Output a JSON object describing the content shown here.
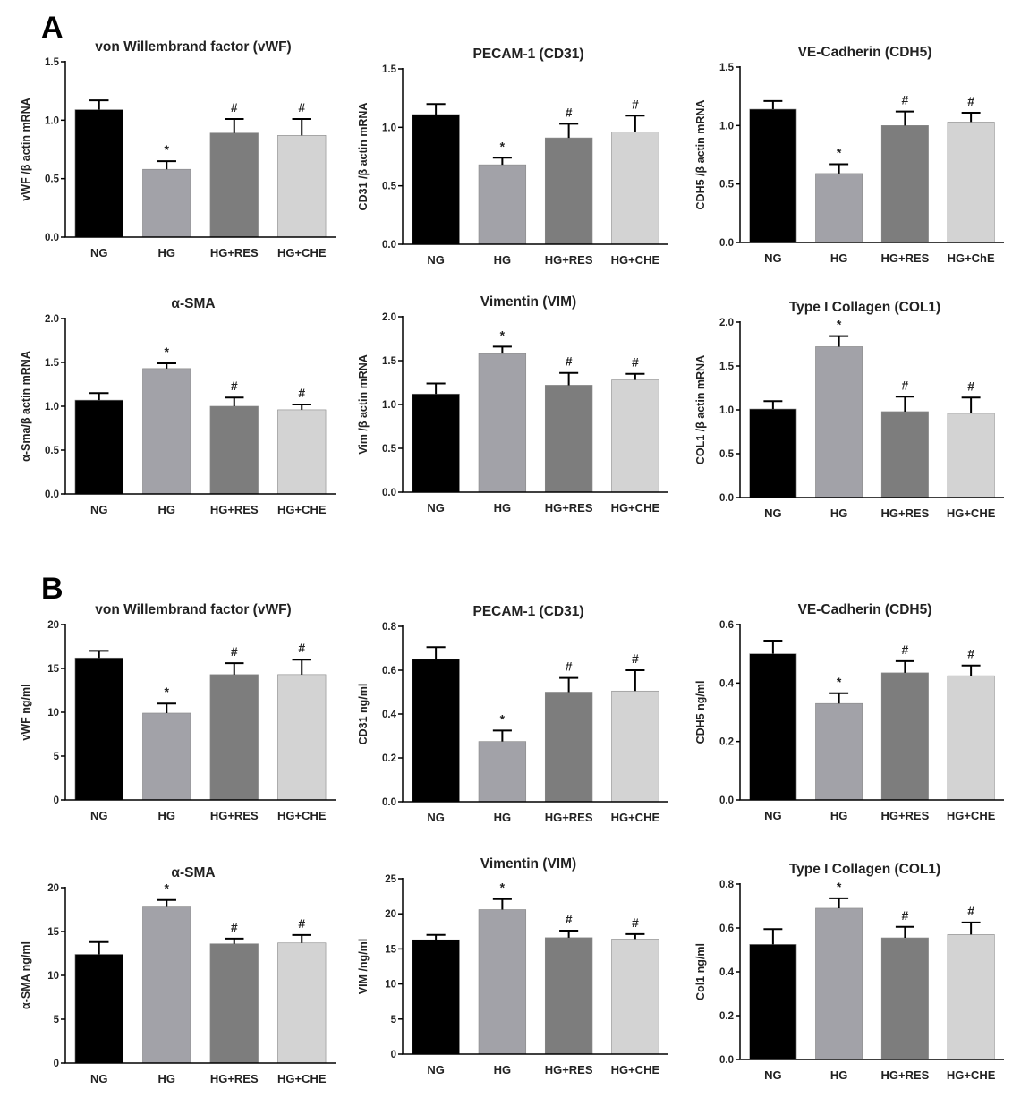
{
  "panels": [
    {
      "letter": "A"
    },
    {
      "letter": "B"
    }
  ],
  "groups": [
    "NG",
    "HG",
    "HG+RES",
    "HG+CHE"
  ],
  "colors": [
    "#000000",
    "#a2a2a8",
    "#7d7d7d",
    "#d3d3d3"
  ],
  "chart_data": [
    {
      "type": "bar",
      "panel": "A",
      "title": "von Willembrand factor (vWF)",
      "ylabel": "vWF /β actin mRNA",
      "categories": [
        "NG",
        "HG",
        "HG+RES",
        "HG+CHE"
      ],
      "values": [
        1.09,
        0.58,
        0.89,
        0.87
      ],
      "errors": [
        0.08,
        0.07,
        0.12,
        0.14
      ],
      "significance": [
        "",
        "*",
        "#",
        "#"
      ],
      "ylim": [
        0,
        1.5
      ],
      "yticks": [
        "0.0",
        "0.5",
        "1.0",
        "1.5"
      ]
    },
    {
      "type": "bar",
      "panel": "A",
      "title": "PECAM-1 (CD31)",
      "ylabel": "CD31 /β actin mRNA",
      "categories": [
        "NG",
        "HG",
        "HG+RES",
        "HG+CHE"
      ],
      "values": [
        1.11,
        0.68,
        0.91,
        0.96
      ],
      "errors": [
        0.09,
        0.06,
        0.12,
        0.14
      ],
      "significance": [
        "",
        "*",
        "#",
        "#"
      ],
      "ylim": [
        0,
        1.5
      ],
      "yticks": [
        "0.0",
        "0.5",
        "1.0",
        "1.5"
      ]
    },
    {
      "type": "bar",
      "panel": "A",
      "title": "VE-Cadherin (CDH5)",
      "ylabel": "CDH5 /β actin mRNA",
      "categories": [
        "NG",
        "HG",
        "HG+RES",
        "HG+ChE"
      ],
      "values": [
        1.14,
        0.59,
        1.0,
        1.03
      ],
      "errors": [
        0.07,
        0.08,
        0.12,
        0.08
      ],
      "significance": [
        "",
        "*",
        "#",
        "#"
      ],
      "ylim": [
        0,
        1.5
      ],
      "yticks": [
        "0.0",
        "0.5",
        "1.0",
        "1.5"
      ]
    },
    {
      "type": "bar",
      "panel": "A",
      "title": "α-SMA",
      "ylabel": "α-Sma/β actin mRNA",
      "categories": [
        "NG",
        "HG",
        "HG+RES",
        "HG+CHE"
      ],
      "values": [
        1.07,
        1.43,
        1.0,
        0.96
      ],
      "errors": [
        0.08,
        0.06,
        0.1,
        0.06
      ],
      "significance": [
        "",
        "*",
        "#",
        "#"
      ],
      "ylim": [
        0,
        2.0
      ],
      "yticks": [
        "0.0",
        "0.5",
        "1.0",
        "1.5",
        "2.0"
      ]
    },
    {
      "type": "bar",
      "panel": "A",
      "title": "Vimentin (VIM)",
      "ylabel": "Vim /β actin mRNA",
      "categories": [
        "NG",
        "HG",
        "HG+RES",
        "HG+CHE"
      ],
      "values": [
        1.12,
        1.58,
        1.22,
        1.28
      ],
      "errors": [
        0.12,
        0.08,
        0.14,
        0.07
      ],
      "significance": [
        "",
        "*",
        "#",
        "#"
      ],
      "ylim": [
        0,
        2.0
      ],
      "yticks": [
        "0.0",
        "0.5",
        "1.0",
        "1.5",
        "2.0"
      ]
    },
    {
      "type": "bar",
      "panel": "A",
      "title": "Type  I Collagen (COL1)",
      "ylabel": "COL1 /β actin mRNA",
      "categories": [
        "NG",
        "HG",
        "HG+RES",
        "HG+CHE"
      ],
      "values": [
        1.01,
        1.72,
        0.98,
        0.96
      ],
      "errors": [
        0.09,
        0.12,
        0.17,
        0.18
      ],
      "significance": [
        "",
        "*",
        "#",
        "#"
      ],
      "ylim": [
        0,
        2.0
      ],
      "yticks": [
        "0.0",
        "0.5",
        "1.0",
        "1.5",
        "2.0"
      ]
    },
    {
      "type": "bar",
      "panel": "B",
      "title": "von Willembrand factor (vWF)",
      "ylabel": "vWF ng/ml",
      "categories": [
        "NG",
        "HG",
        "HG+RES",
        "HG+CHE"
      ],
      "values": [
        16.2,
        9.9,
        14.3,
        14.3
      ],
      "errors": [
        0.8,
        1.1,
        1.3,
        1.7
      ],
      "significance": [
        "",
        "*",
        "#",
        "#"
      ],
      "ylim": [
        0,
        20
      ],
      "yticks": [
        "0",
        "5",
        "10",
        "15",
        "20"
      ]
    },
    {
      "type": "bar",
      "panel": "B",
      "title": "PECAM-1 (CD31)",
      "ylabel": "CD31 ng/ml",
      "categories": [
        "NG",
        "HG",
        "HG+RES",
        "HG+CHE"
      ],
      "values": [
        0.65,
        0.275,
        0.5,
        0.505
      ],
      "errors": [
        0.055,
        0.05,
        0.065,
        0.095
      ],
      "significance": [
        "",
        "*",
        "#",
        "#"
      ],
      "ylim": [
        0,
        0.8
      ],
      "yticks": [
        "0.0",
        "0.2",
        "0.4",
        "0.6",
        "0.8"
      ]
    },
    {
      "type": "bar",
      "panel": "B",
      "title": "VE-Cadherin (CDH5)",
      "ylabel": "CDH5 ng/ml",
      "categories": [
        "NG",
        "HG",
        "HG+RES",
        "HG+CHE"
      ],
      "values": [
        0.5,
        0.33,
        0.435,
        0.425
      ],
      "errors": [
        0.045,
        0.035,
        0.04,
        0.035
      ],
      "significance": [
        "",
        "*",
        "#",
        "#"
      ],
      "ylim": [
        0,
        0.6
      ],
      "yticks": [
        "0.0",
        "0.2",
        "0.4",
        "0.6"
      ]
    },
    {
      "type": "bar",
      "panel": "B",
      "title": "α-SMA",
      "ylabel": "α-SMA ng/ml",
      "categories": [
        "NG",
        "HG",
        "HG+RES",
        "HG+CHE"
      ],
      "values": [
        12.4,
        17.8,
        13.6,
        13.7
      ],
      "errors": [
        1.4,
        0.8,
        0.6,
        0.9
      ],
      "significance": [
        "",
        "*",
        "#",
        "#"
      ],
      "ylim": [
        0,
        20
      ],
      "yticks": [
        "0",
        "5",
        "10",
        "15",
        "20"
      ]
    },
    {
      "type": "bar",
      "panel": "B",
      "title": "Vimentin (VIM)",
      "ylabel": "VIM /ng/ml",
      "categories": [
        "NG",
        "HG",
        "HG+RES",
        "HG+CHE"
      ],
      "values": [
        16.3,
        20.6,
        16.6,
        16.4
      ],
      "errors": [
        0.7,
        1.5,
        1.0,
        0.7
      ],
      "significance": [
        "",
        "*",
        "#",
        "#"
      ],
      "ylim": [
        0,
        25
      ],
      "yticks": [
        "0",
        "5",
        "10",
        "15",
        "20",
        "25"
      ]
    },
    {
      "type": "bar",
      "panel": "B",
      "title": "Type I Collagen (COL1)",
      "ylabel": "Col1 ng/ml",
      "categories": [
        "NG",
        "HG",
        "HG+RES",
        "HG+CHE"
      ],
      "values": [
        0.525,
        0.69,
        0.555,
        0.57
      ],
      "errors": [
        0.07,
        0.045,
        0.05,
        0.055
      ],
      "significance": [
        "",
        "*",
        "#",
        "#"
      ],
      "ylim": [
        0,
        0.8
      ],
      "yticks": [
        "0.0",
        "0.2",
        "0.4",
        "0.6",
        "0.8"
      ]
    }
  ]
}
